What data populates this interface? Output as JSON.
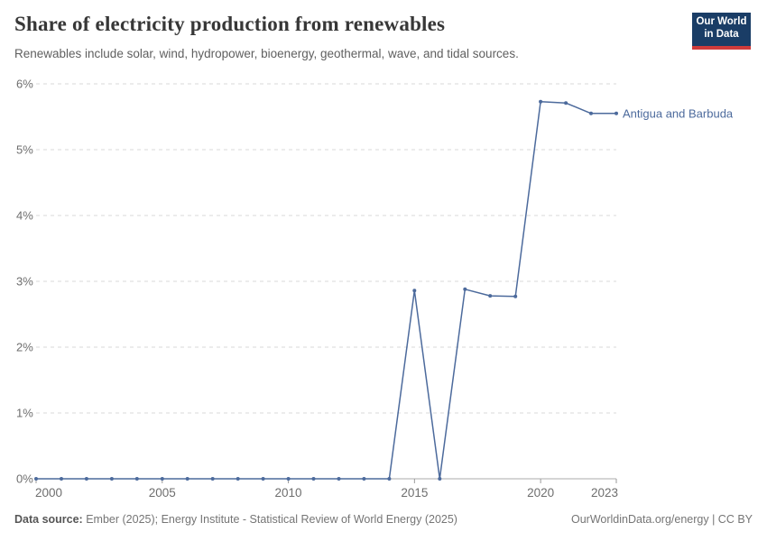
{
  "header": {
    "title": "Share of electricity production from renewables",
    "subtitle": "Renewables include solar, wind, hydropower, bioenergy, geothermal, wave, and tidal sources."
  },
  "logo": {
    "line1": "Our World",
    "line2": "in Data"
  },
  "colors": {
    "line": "#4C6A9C",
    "logo_navy": "#1a3d66",
    "logo_red": "#cf3b3b",
    "gridline": "#d9d9d9",
    "axis": "#ababab",
    "tick_text": "#6e6e6e"
  },
  "chart_data": {
    "type": "line",
    "title": "Share of electricity production from renewables",
    "xlabel": "",
    "ylabel": "",
    "unit": "%",
    "x": [
      2000,
      2001,
      2002,
      2003,
      2004,
      2005,
      2006,
      2007,
      2008,
      2009,
      2010,
      2011,
      2012,
      2013,
      2014,
      2015,
      2016,
      2017,
      2018,
      2019,
      2020,
      2021,
      2022,
      2023
    ],
    "series": [
      {
        "name": "Antigua and Barbuda",
        "values": [
          0,
          0,
          0,
          0,
          0,
          0,
          0,
          0,
          0,
          0,
          0,
          0,
          0,
          0,
          0,
          2.86,
          0,
          2.88,
          2.78,
          2.77,
          5.73,
          5.71,
          5.55,
          5.55
        ]
      }
    ],
    "ylim": [
      0,
      6
    ],
    "yticks": [
      0,
      1,
      2,
      3,
      4,
      5,
      6
    ],
    "ytick_labels": [
      "0%",
      "1%",
      "2%",
      "3%",
      "4%",
      "5%",
      "6%"
    ],
    "xticks": [
      2000,
      2005,
      2010,
      2015,
      2020,
      2023
    ],
    "xtick_labels": [
      "2000",
      "2005",
      "2010",
      "2015",
      "2020",
      "2023"
    ],
    "grid": true,
    "gridline_style": "dashed",
    "legend_position": "end-of-line",
    "end_label": "Antigua and Barbuda",
    "marker": "dot"
  },
  "footer": {
    "datasource_label": "Data source:",
    "datasource_text": " Ember (2025); Energy Institute - Statistical Review of World Energy (2025)",
    "attribution": "OurWorldinData.org/energy | CC BY"
  }
}
